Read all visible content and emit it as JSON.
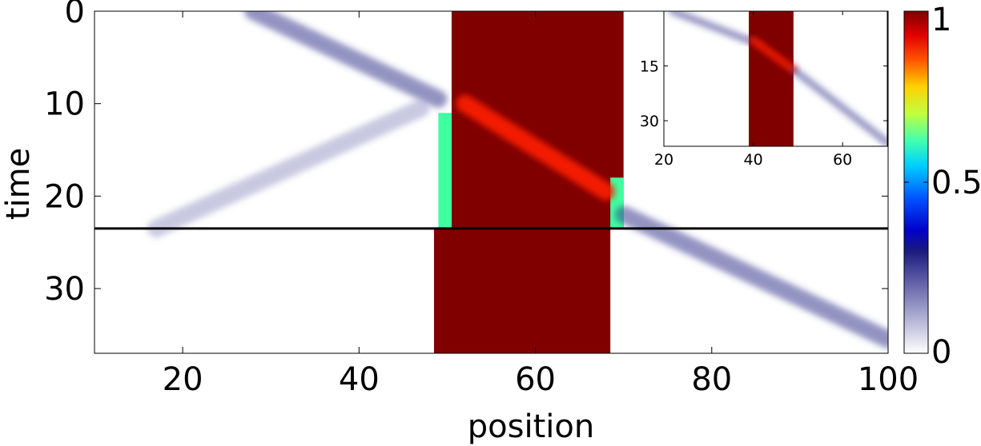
{
  "chart_data": [
    {
      "type": "heatmap",
      "xlabel": "position",
      "ylabel": "time",
      "xlim": [
        10,
        100
      ],
      "ylim": [
        37,
        0
      ],
      "x_ticks": [
        "20",
        "40",
        "60",
        "80",
        "100"
      ],
      "y_ticks": [
        "0",
        "10",
        "20",
        "30"
      ],
      "colorbar": {
        "range": [
          0,
          1
        ],
        "ticks": [
          "0",
          "0.5",
          "1"
        ],
        "colormap": "white-to-dark-blue-then-jet"
      },
      "reference_line": {
        "time": 23.5,
        "color": "#000000"
      },
      "regions": [
        {
          "name": "dark red band",
          "x": [
            50.5,
            70
          ],
          "t": [
            0,
            23.5
          ],
          "value": 1.0
        },
        {
          "name": "dark red band",
          "x": [
            48.5,
            68.5
          ],
          "t": [
            23.5,
            37
          ],
          "value": 1.0
        },
        {
          "name": "green edge",
          "x": [
            49,
            50.5
          ],
          "t": [
            11,
            23.5
          ],
          "value": 0.6
        },
        {
          "name": "green edge",
          "x": [
            68.5,
            70
          ],
          "t": [
            18,
            23.5
          ],
          "value": 0.6
        }
      ],
      "streaks": [
        {
          "from": [
            28,
            0
          ],
          "to": [
            49,
            9.5
          ],
          "value": 0.25
        },
        {
          "from": [
            17,
            23.5
          ],
          "to": [
            47,
            10.5
          ],
          "value": 0.12
        },
        {
          "from": [
            70,
            22
          ],
          "to": [
            100,
            35.5
          ],
          "value": 0.3
        },
        {
          "from": [
            52,
            10
          ],
          "to": [
            68,
            19.5
          ],
          "value": 0.85
        }
      ]
    },
    {
      "type": "heatmap",
      "name": "inset",
      "xlim": [
        20,
        70
      ],
      "ylim": [
        37,
        0
      ],
      "x_ticks": [
        "20",
        "40",
        "60"
      ],
      "y_ticks": [
        "15",
        "30"
      ],
      "regions": [
        {
          "x": [
            39,
            49
          ],
          "t": [
            0,
            37
          ],
          "value": 1.0
        }
      ],
      "streaks": [
        {
          "from": [
            22,
            0
          ],
          "to": [
            39,
            8
          ],
          "value": 0.25
        },
        {
          "from": [
            40,
            8
          ],
          "to": [
            49,
            16
          ],
          "value": 0.85
        },
        {
          "from": [
            49,
            16
          ],
          "to": [
            70,
            36
          ],
          "value": 0.25
        }
      ]
    }
  ]
}
